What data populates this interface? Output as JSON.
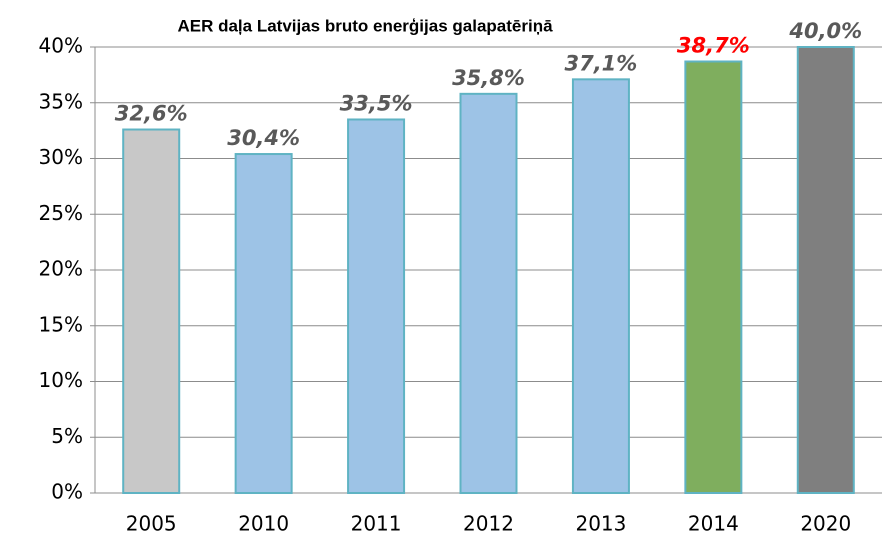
{
  "chart_data": {
    "type": "bar",
    "title": "AER daļa Latvijas bruto enerģijas galapatēriņā",
    "categories": [
      "2005",
      "2010",
      "2011",
      "2012",
      "2013",
      "2014",
      "2020"
    ],
    "values": [
      32.6,
      30.4,
      33.5,
      35.8,
      37.1,
      38.7,
      40.0
    ],
    "value_labels": [
      "32,6%",
      "30,4%",
      "33,5%",
      "35,8%",
      "37,1%",
      "38,7%",
      "40,0%"
    ],
    "colors": [
      "#c8c8c8",
      "#9dc3e6",
      "#9dc3e6",
      "#9dc3e6",
      "#9dc3e6",
      "#7fae5e",
      "#7f7f7f"
    ],
    "label_colors": [
      "#595959",
      "#595959",
      "#595959",
      "#595959",
      "#595959",
      "#ff0000",
      "#595959"
    ],
    "ylim": [
      0,
      40
    ],
    "yticks": [
      {
        "value": 0,
        "label": "0%"
      },
      {
        "value": 5,
        "label": "5%"
      },
      {
        "value": 10,
        "label": "10%"
      },
      {
        "value": 15,
        "label": "15%"
      },
      {
        "value": 20,
        "label": "20%"
      },
      {
        "value": 25,
        "label": "25%"
      },
      {
        "value": 30,
        "label": "30%"
      },
      {
        "value": 35,
        "label": "35%"
      },
      {
        "value": 40,
        "label": "40%"
      }
    ],
    "grid": true
  }
}
